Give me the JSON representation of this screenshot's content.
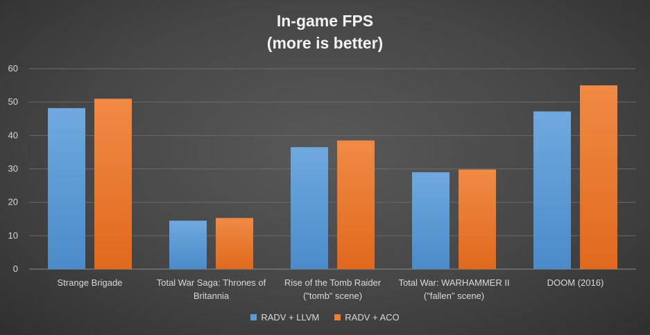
{
  "chart_data": {
    "type": "bar",
    "title": "In-game FPS",
    "subtitle": "(more is better)",
    "categories": [
      [
        "Strange Brigade"
      ],
      [
        "Total War Saga: Thrones of",
        "Britannia"
      ],
      [
        "Rise of the Tomb Raider",
        "(\"tomb\" scene)"
      ],
      [
        "Total War: WARHAMMER II",
        "(\"fallen\" scene)"
      ],
      [
        "DOOM (2016)"
      ]
    ],
    "series": [
      {
        "name": "RADV + LLVM",
        "color": "#5b9bd5",
        "values": [
          48.2,
          14.5,
          36.5,
          29.0,
          47.2
        ]
      },
      {
        "name": "RADV + ACO",
        "color": "#ed7d31",
        "values": [
          51.0,
          15.3,
          38.5,
          29.8,
          55.0
        ]
      }
    ],
    "ylim": [
      0,
      60
    ],
    "yticks": [
      0,
      10,
      20,
      30,
      40,
      50,
      60
    ],
    "grid": true,
    "legend_position": "bottom"
  }
}
